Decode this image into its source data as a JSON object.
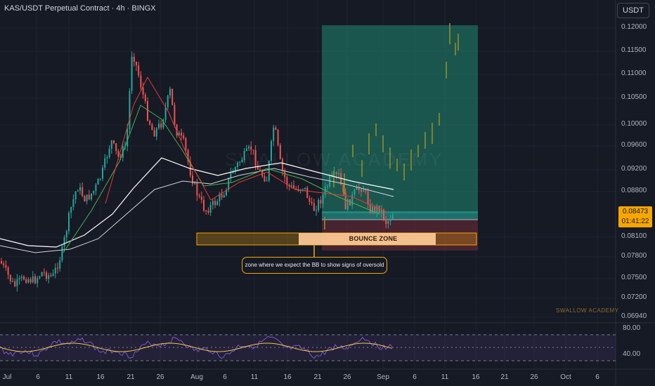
{
  "header": {
    "title": "KAS/USDT Perpetual Contract · 4h · BINGX",
    "currency_button": "USDT"
  },
  "price_axis": [
    "0.12000",
    "0.11500",
    "0.11000",
    "0.10500",
    "0.10000",
    "0.09600",
    "0.09200",
    "0.08800",
    "0.08100",
    "0.07800",
    "0.07500",
    "0.07200",
    "0.06940"
  ],
  "current_price": {
    "value": "0.08473",
    "countdown": "01:41:22"
  },
  "time_axis": [
    "Jul",
    "6",
    "11",
    "16",
    "21",
    "26",
    "Aug",
    "6",
    "11",
    "16",
    "21",
    "26",
    "Sep",
    "6",
    "11",
    "16",
    "21",
    "26",
    "Oct",
    "6"
  ],
  "annotations": {
    "zone_label": "BOUNCE ZONE",
    "callout": "zone where we expect the BB to show signs of oversold",
    "watermark": "SWALLOW ACADEMY",
    "brand": "SWALLOW ACADEMY"
  },
  "rsi_axis": [
    "80.00",
    "40.00"
  ],
  "colors": {
    "background": "#161a25",
    "up_candle": "#26a69a",
    "down_candle": "#ef5350",
    "ghost_candle": "#8a8a2a",
    "target_zone": "#1e6b5c",
    "stop_zone": "#6b2a38",
    "bounce_zone": "#f7a600",
    "rsi_line": "#7e57c2",
    "rsi_ma": "#f7c548"
  }
}
